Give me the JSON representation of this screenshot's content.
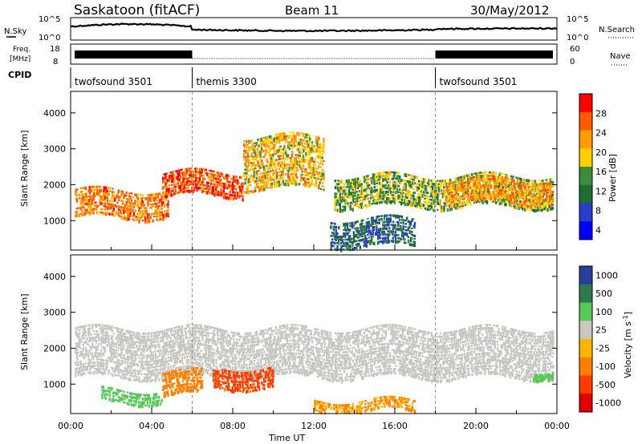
{
  "header": {
    "station": "Saskatoon (fitACF)",
    "beam": "Beam 11",
    "date": "30/May/2012"
  },
  "panels": {
    "nsky_label": "N.Sky",
    "nsky_ticks": [
      "10^5",
      "10^0"
    ],
    "nsearch_label": "N.Search",
    "nsearch_ticks": [
      "10^5",
      "10^0"
    ],
    "freq_label": [
      "Freq.",
      "[MHz]"
    ],
    "freq_ticks": [
      "18",
      "8"
    ],
    "nave_label": "Nave",
    "nave_ticks": [
      "60",
      "0"
    ],
    "cpid_label": "CPID",
    "cpid_segments": [
      {
        "name": "twofsound 3501",
        "start_hour": 0,
        "end_hour": 6
      },
      {
        "name": "themis 3300",
        "start_hour": 6,
        "end_hour": 18
      },
      {
        "name": "twofsound 3501",
        "start_hour": 18,
        "end_hour": 24
      }
    ]
  },
  "colors": {
    "power_scale": [
      "#ff0000",
      "#ff5a00",
      "#ff9a00",
      "#ffd000",
      "#3c8c3c",
      "#1e6e32",
      "#2a3ccc",
      "#0000ff"
    ],
    "velocity_scale": [
      "#2a3c9a",
      "#2e7a4a",
      "#58c858",
      "#c8c8c0",
      "#ffb400",
      "#ff8000",
      "#ff3c00",
      "#e00000"
    ],
    "ground_scatter": "#c8c8c0"
  },
  "chart_data": [
    {
      "type": "heatmap",
      "title": "",
      "xlabel": "Time UT",
      "ylabel": "Slant Range [km]",
      "x_ticks": [
        "00:00",
        "04:00",
        "08:00",
        "12:00",
        "16:00",
        "20:00",
        "00:00"
      ],
      "x_range_hours": [
        0,
        24
      ],
      "ylim": [
        180,
        4600
      ],
      "y_ticks": [
        1000,
        2000,
        3000,
        4000
      ],
      "colorbar": {
        "label": "Power [dB]",
        "range": [
          0,
          30
        ],
        "ticks": [
          "28",
          "24",
          "20",
          "16",
          "12",
          "8",
          "4"
        ]
      },
      "regions": [
        {
          "t0": 0.2,
          "t1": 4.8,
          "r0": 1100,
          "r1": 1900,
          "value": 22
        },
        {
          "t0": 4.5,
          "t1": 8.5,
          "r0": 1700,
          "r1": 2400,
          "value": 25
        },
        {
          "t0": 8.5,
          "t1": 12.5,
          "r0": 1900,
          "r1": 3400,
          "value": 18
        },
        {
          "t0": 13.0,
          "t1": 23.8,
          "r0": 1400,
          "r1": 2300,
          "value": 14
        },
        {
          "t0": 18.5,
          "t1": 23.8,
          "r0": 1500,
          "r1": 2200,
          "value": 20
        },
        {
          "t0": 12.8,
          "t1": 17.0,
          "r0": 300,
          "r1": 1100,
          "value": 8
        }
      ]
    },
    {
      "type": "heatmap",
      "title": "",
      "xlabel": "Time UT",
      "ylabel": "Slant Range [km]",
      "x_ticks": [
        "00:00",
        "04:00",
        "08:00",
        "12:00",
        "16:00",
        "20:00",
        "00:00"
      ],
      "x_range_hours": [
        0,
        24
      ],
      "ylim": [
        180,
        4600
      ],
      "y_ticks": [
        1000,
        2000,
        3000,
        4000
      ],
      "colorbar": {
        "label": "Velocity [m s^-1]",
        "ticks": [
          "1000",
          "500",
          "100",
          "25",
          "-25",
          "-100",
          "-500",
          "-1000"
        ]
      },
      "regions": [
        {
          "t0": 0.2,
          "t1": 23.8,
          "r0": 1200,
          "r1": 2600,
          "value": 0
        },
        {
          "t0": 4.5,
          "t1": 6.5,
          "r0": 700,
          "r1": 1400,
          "value": -300
        },
        {
          "t0": 7.0,
          "t1": 10.0,
          "r0": 900,
          "r1": 1500,
          "value": -500
        },
        {
          "t0": 1.5,
          "t1": 4.5,
          "r0": 500,
          "r1": 900,
          "value": 200
        },
        {
          "t0": 22.8,
          "t1": 23.8,
          "r0": 1200,
          "r1": 1400,
          "value": 150
        },
        {
          "t0": 12.0,
          "t1": 17.0,
          "r0": 250,
          "r1": 600,
          "value": -150
        }
      ]
    }
  ]
}
